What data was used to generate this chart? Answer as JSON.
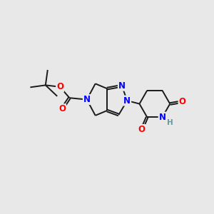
{
  "background_color": "#e8e8e8",
  "bond_color": "#1a1a1a",
  "N_color": "#0000ff",
  "O_color": "#ff0000",
  "H_color": "#669999",
  "line_width": 1.4,
  "font_size": 8.5,
  "figsize": [
    3.0,
    3.0
  ],
  "dpi": 100,
  "xlim": [
    0,
    10
  ],
  "ylim": [
    0,
    10
  ]
}
